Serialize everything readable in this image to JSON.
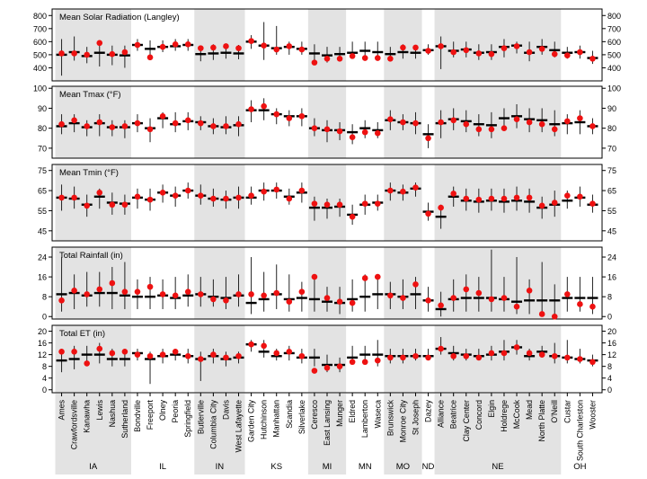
{
  "chart_data": {
    "type": "scatter",
    "description_free": true,
    "stations": [
      "Ames",
      "Crawfordsville",
      "Kanawha",
      "Lewis",
      "Nashua",
      "Sutherland",
      "Bondville",
      "Freeport",
      "Olney",
      "Peoria",
      "Springfield",
      "Butlerville",
      "Columbia City",
      "Davis",
      "West Lafayette",
      "Garden City",
      "Hutchinson",
      "Manhattan",
      "Scandia",
      "Silverlake",
      "Ceresco",
      "East Lansing",
      "Munger",
      "Eldred",
      "Lamberton",
      "Waseca",
      "Brunswick",
      "Monroe City",
      "St Joseph",
      "Dazey",
      "Alliance",
      "Beatrice",
      "Clay Center",
      "Concord",
      "Elgin",
      "Holdrege",
      "McCook",
      "Mead",
      "North Platte",
      "O'Neill",
      "Custar",
      "South Charleston",
      "Wooster"
    ],
    "states": [
      {
        "name": "IA",
        "start": 0,
        "end": 5,
        "shaded": true
      },
      {
        "name": "IL",
        "start": 6,
        "end": 10,
        "shaded": false
      },
      {
        "name": "IN",
        "start": 11,
        "end": 14,
        "shaded": true
      },
      {
        "name": "KS",
        "start": 15,
        "end": 19,
        "shaded": false
      },
      {
        "name": "MI",
        "start": 20,
        "end": 22,
        "shaded": true
      },
      {
        "name": "MN",
        "start": 23,
        "end": 25,
        "shaded": false
      },
      {
        "name": "MO",
        "start": 26,
        "end": 28,
        "shaded": true
      },
      {
        "name": "ND",
        "start": 29,
        "end": 29,
        "shaded": false
      },
      {
        "name": "NE",
        "start": 30,
        "end": 39,
        "shaded": true
      },
      {
        "name": "OH",
        "start": 40,
        "end": 42,
        "shaded": false
      }
    ],
    "panels": [
      {
        "title": "Mean Solar Radiation (Langley)",
        "ylim": [
          300,
          850
        ],
        "ticks": [
          400,
          500,
          600,
          700,
          800
        ],
        "median": [
          500,
          520,
          490,
          515,
          500,
          495,
          575,
          545,
          560,
          565,
          575,
          505,
          510,
          515,
          510,
          600,
          570,
          550,
          560,
          545,
          510,
          495,
          505,
          515,
          530,
          520,
          505,
          520,
          515,
          535,
          565,
          530,
          540,
          515,
          520,
          560,
          570,
          515,
          560,
          535,
          515,
          520,
          475
        ],
        "low": [
          340,
          455,
          435,
          410,
          420,
          400,
          530,
          460,
          520,
          530,
          530,
          450,
          460,
          470,
          465,
          545,
          460,
          500,
          500,
          500,
          455,
          440,
          450,
          470,
          480,
          460,
          460,
          470,
          470,
          500,
          390,
          480,
          480,
          460,
          460,
          480,
          510,
          450,
          500,
          480,
          470,
          470,
          430
        ],
        "high": [
          620,
          640,
          560,
          600,
          570,
          570,
          620,
          610,
          610,
          620,
          620,
          560,
          580,
          585,
          575,
          650,
          750,
          720,
          600,
          600,
          580,
          560,
          560,
          600,
          600,
          600,
          560,
          580,
          570,
          580,
          640,
          600,
          600,
          580,
          580,
          620,
          600,
          600,
          620,
          600,
          560,
          570,
          530
        ],
        "obs": [
          510,
          510,
          500,
          590,
          505,
          520,
          575,
          480,
          560,
          580,
          580,
          550,
          555,
          565,
          550,
          605,
          570,
          540,
          565,
          540,
          440,
          470,
          470,
          490,
          475,
          475,
          470,
          555,
          555,
          530,
          565,
          520,
          535,
          510,
          505,
          550,
          565,
          520,
          545,
          505,
          495,
          520,
          470
        ]
      },
      {
        "title": "Mean Tmax (°F)",
        "ylim": [
          65,
          101
        ],
        "ticks": [
          70,
          80,
          90,
          100
        ],
        "median": [
          81,
          82.5,
          80.5,
          82.5,
          80.5,
          80.5,
          82.5,
          80,
          85,
          82,
          83.5,
          83,
          81,
          80.5,
          81.5,
          89,
          89,
          87,
          86,
          86,
          80,
          79,
          79,
          78,
          80,
          79,
          84,
          83,
          82.5,
          77,
          82.5,
          84.5,
          83.5,
          82,
          81.5,
          85,
          86,
          84.5,
          84,
          82,
          82.5,
          83,
          81
        ],
        "low": [
          77,
          78,
          76,
          76,
          76,
          75,
          78,
          73,
          80,
          78,
          79,
          79,
          77,
          77,
          76,
          83,
          84,
          82,
          81,
          81,
          76,
          73,
          74,
          72,
          75,
          75,
          79,
          79,
          77,
          70,
          75,
          79,
          78,
          76,
          75,
          79,
          80,
          78,
          78,
          76,
          77,
          77,
          77
        ],
        "high": [
          87,
          87,
          84,
          87,
          84,
          84,
          87,
          85,
          88,
          88,
          88,
          86,
          85,
          86,
          86,
          94,
          95,
          90,
          89,
          90,
          85,
          84,
          83,
          82,
          84,
          83,
          89,
          87,
          88,
          82,
          89,
          90,
          89,
          87,
          88,
          90,
          92,
          90,
          90,
          89,
          87,
          89,
          85
        ],
        "obs": [
          82,
          84,
          81,
          83,
          80.5,
          81,
          82.5,
          79.5,
          86,
          82.5,
          84,
          82.5,
          81,
          81,
          82,
          89.5,
          91,
          87,
          85,
          86,
          80,
          79.5,
          78.5,
          75.5,
          78,
          77.5,
          84.5,
          83,
          82.5,
          75,
          83,
          84,
          82,
          79.5,
          79.5,
          80,
          84.5,
          83,
          82,
          79.5,
          83.5,
          85,
          81
        ]
      },
      {
        "title": "Mean Tmin (°F)",
        "ylim": [
          40,
          78
        ],
        "ticks": [
          45,
          55,
          65,
          75
        ],
        "median": [
          61.5,
          61,
          58,
          62,
          59,
          58.5,
          61.5,
          60.5,
          64,
          62.5,
          65,
          62.5,
          61,
          60.5,
          61.5,
          61.5,
          65,
          65,
          62,
          64,
          56.5,
          56.5,
          57,
          53,
          58,
          59,
          65,
          64,
          66,
          54.5,
          52,
          62,
          60,
          59.5,
          60,
          59.5,
          60,
          59.5,
          56.5,
          58,
          60,
          61.5,
          58
        ],
        "low": [
          55,
          56,
          52,
          56,
          53,
          53,
          56,
          55,
          59,
          57,
          61,
          58,
          57,
          56,
          56,
          58,
          60,
          61,
          58,
          59,
          50,
          51,
          52,
          48,
          53,
          55,
          60,
          60,
          62,
          50,
          46,
          57,
          55,
          54,
          55,
          54,
          55,
          54,
          51,
          52,
          56,
          57,
          54
        ],
        "high": [
          68,
          67,
          63,
          66,
          64,
          63,
          66,
          66,
          68,
          67,
          69,
          68,
          66,
          65,
          67,
          67,
          69,
          69,
          66,
          69,
          62,
          61,
          61,
          58,
          63,
          63,
          69,
          68,
          69,
          59,
          58,
          67,
          66,
          66,
          66,
          66,
          67,
          66,
          62,
          65,
          65,
          67,
          63
        ],
        "obs": [
          61.5,
          61.5,
          57.5,
          64,
          58,
          58,
          62,
          60.5,
          64,
          62.5,
          65,
          62.5,
          61,
          61,
          61.5,
          62.5,
          64.5,
          65.5,
          61,
          65,
          58.5,
          58,
          58,
          52,
          58.5,
          58.5,
          65,
          64.5,
          66.5,
          53.5,
          56.5,
          63.5,
          61,
          60.5,
          61,
          61,
          61.5,
          61.5,
          57.5,
          59,
          62.5,
          62,
          58.5
        ]
      },
      {
        "title": "Total Rainfall (in)",
        "ylim": [
          -1,
          28
        ],
        "ticks": [
          0,
          8,
          16,
          24
        ],
        "median": [
          9,
          9.5,
          8.5,
          9.5,
          9.5,
          8.5,
          8,
          8,
          8.5,
          7.5,
          8.5,
          9,
          8,
          7.5,
          8.5,
          5.5,
          7,
          9,
          7,
          7.5,
          7,
          6,
          5.5,
          7,
          8,
          9,
          9,
          8,
          9,
          6.5,
          3,
          7,
          7.5,
          7.5,
          7.5,
          7,
          6,
          6.5,
          6.5,
          6.5,
          7.5,
          7.5,
          7.5
        ],
        "low": [
          2,
          3,
          4,
          4,
          3,
          3,
          3,
          3,
          3,
          3,
          4,
          4,
          4,
          3,
          4,
          1,
          2,
          3,
          2,
          2,
          2,
          2,
          1,
          2,
          2,
          3,
          3,
          3,
          3,
          2,
          0,
          2,
          2,
          2,
          2,
          2,
          1,
          1,
          0,
          0,
          2,
          2,
          1
        ],
        "high": [
          24,
          17,
          18,
          18,
          20,
          22,
          15,
          16,
          15,
          16,
          17,
          16,
          15,
          16,
          17,
          24,
          18,
          21,
          17,
          14,
          16,
          12,
          12,
          15,
          17,
          17,
          14,
          15,
          16,
          12,
          10,
          15,
          17,
          16,
          27,
          16,
          24,
          15,
          22,
          13,
          16,
          16,
          16
        ],
        "obs": [
          6.5,
          10.5,
          9,
          11,
          13.5,
          10,
          10,
          12,
          9,
          8.5,
          10,
          9,
          7,
          6.5,
          9,
          9,
          8.5,
          9.5,
          6,
          10,
          16,
          7.5,
          6,
          5.5,
          15.5,
          16,
          8.5,
          7.5,
          13,
          6.5,
          4.5,
          7.5,
          11,
          9.5,
          7,
          7.5,
          4,
          10.5,
          1,
          0,
          9,
          5,
          4
        ]
      },
      {
        "title": "Total ET (in)",
        "ylim": [
          -1,
          22
        ],
        "ticks": [
          0,
          4,
          8,
          12,
          16,
          20
        ],
        "median": [
          10,
          10.5,
          12,
          12,
          10.5,
          10.5,
          12.5,
          10.5,
          11.5,
          12,
          11.5,
          10.5,
          11.5,
          10.5,
          11,
          15.5,
          13,
          11.5,
          12.5,
          11,
          11,
          8.5,
          8.5,
          11,
          12,
          12,
          11.5,
          11.5,
          11.5,
          11.5,
          14,
          12.5,
          12,
          11.5,
          12,
          13,
          14.5,
          11.5,
          13,
          11.5,
          11,
          10.5,
          10
        ],
        "low": [
          6,
          7,
          9,
          9,
          8,
          8,
          10,
          2,
          9,
          10,
          9,
          3,
          9,
          8,
          9,
          13,
          11,
          10,
          10,
          9,
          8,
          6,
          6,
          9,
          9,
          8,
          9,
          9,
          10,
          10,
          12,
          10,
          10,
          10,
          10,
          10,
          12,
          10,
          11,
          9,
          9,
          9,
          8
        ],
        "high": [
          14,
          15,
          15,
          16,
          14,
          14,
          14,
          13,
          14,
          14,
          14,
          13,
          14,
          13,
          13,
          17,
          17,
          14,
          15,
          14,
          14,
          12,
          11,
          15,
          15,
          17,
          14,
          14,
          14,
          14,
          18,
          15,
          14,
          14,
          15,
          17,
          17,
          14,
          15,
          16,
          17,
          14,
          12
        ],
        "obs": [
          13,
          13,
          9,
          14,
          12.5,
          13,
          12,
          11.5,
          12,
          13,
          11.5,
          10.5,
          12,
          11,
          11.5,
          15.5,
          15,
          12.5,
          13,
          11.5,
          6.5,
          7.5,
          8,
          9.5,
          9.5,
          10,
          11,
          11,
          11.5,
          11,
          14,
          11.5,
          11.5,
          11,
          12.5,
          12.5,
          14.5,
          12.5,
          12,
          11.5,
          11,
          10.5,
          9.5
        ]
      }
    ]
  }
}
